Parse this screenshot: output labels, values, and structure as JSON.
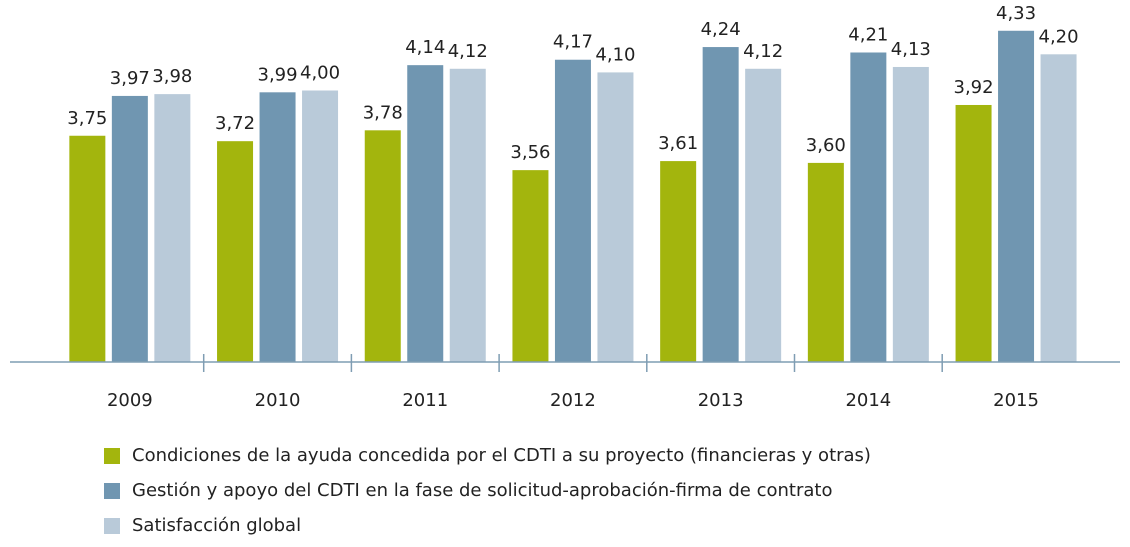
{
  "chart_data": {
    "type": "bar",
    "categories": [
      "2009",
      "2010",
      "2011",
      "2012",
      "2013",
      "2014",
      "2015"
    ],
    "series": [
      {
        "name": "Condiciones de la ayuda concedida por el CDTI a su proyecto (financieras y otras)",
        "color": "#a3b50d",
        "values": [
          3.75,
          3.72,
          3.78,
          3.56,
          3.61,
          3.6,
          3.92
        ],
        "value_labels": [
          "3,75",
          "3,72",
          "3,78",
          "3,56",
          "3,61",
          "3,60",
          "3,92"
        ]
      },
      {
        "name": "Gestión y apoyo del CDTI en la fase de solicitud-aprobación-firma de contrato",
        "color": "#7096b1",
        "values": [
          3.97,
          3.99,
          4.14,
          4.17,
          4.24,
          4.21,
          4.33
        ],
        "value_labels": [
          "3,97",
          "3,99",
          "4,14",
          "4,17",
          "4,24",
          "4,21",
          "4,33"
        ]
      },
      {
        "name": "Satisfacción global",
        "color": "#b9cad9",
        "values": [
          3.98,
          4.0,
          4.12,
          4.1,
          4.12,
          4.13,
          4.2
        ],
        "value_labels": [
          "3,98",
          "4,00",
          "4,12",
          "4,10",
          "4,12",
          "4,13",
          "4,20"
        ]
      }
    ],
    "ylim": [
      2.5,
      4.5
    ]
  }
}
